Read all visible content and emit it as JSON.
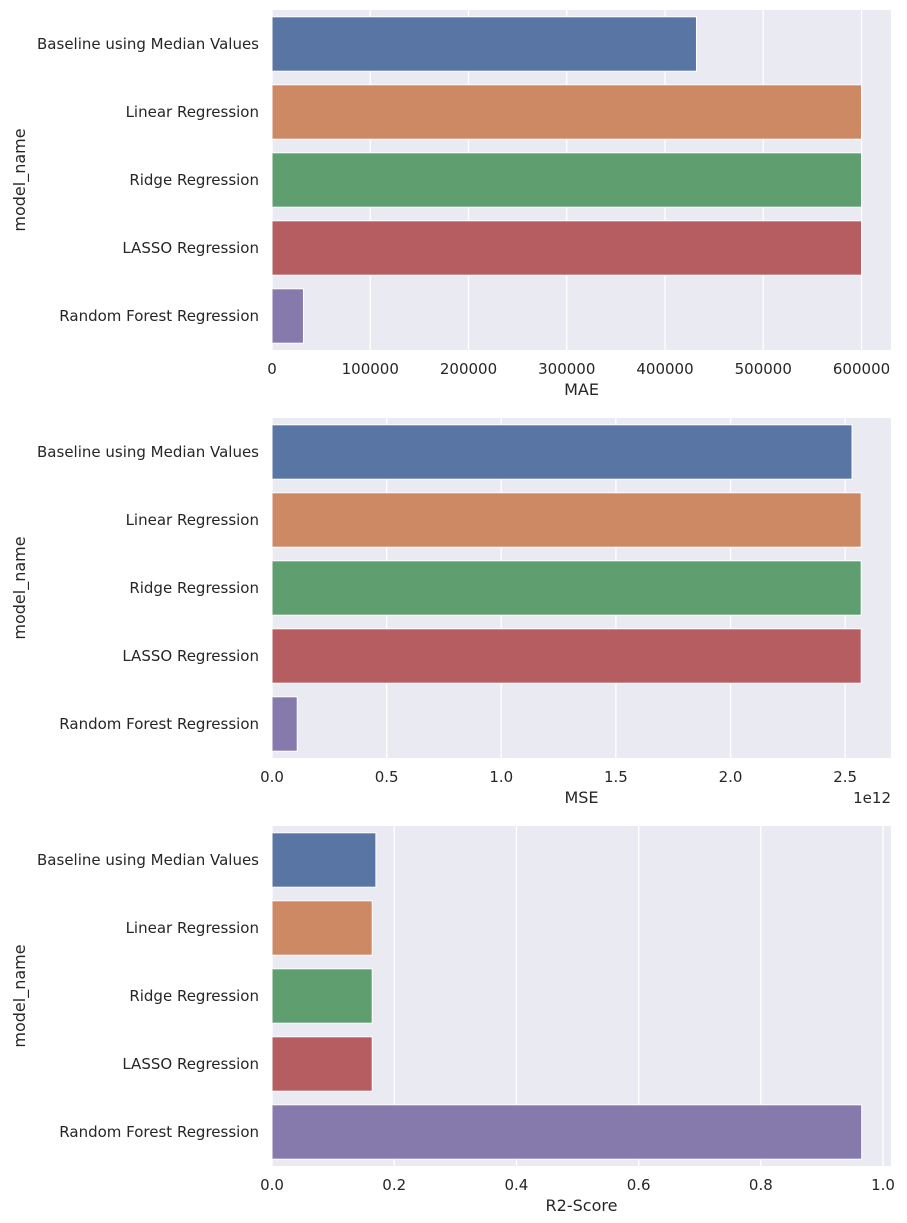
{
  "palette": [
    "#5875a4",
    "#cc8963",
    "#5f9e6e",
    "#b55d60",
    "#857aab"
  ],
  "chart_data": [
    {
      "type": "bar",
      "orientation": "horizontal",
      "categories": [
        "Baseline using Median Values",
        "Linear Regression",
        "Ridge Regression",
        "LASSO Regression",
        "Random Forest Regression"
      ],
      "values": [
        432000,
        600000,
        600000,
        600000,
        32000
      ],
      "xlabel": "MAE",
      "ylabel": "model_name",
      "xlim": [
        0,
        630000
      ],
      "xticks": [
        0,
        100000,
        200000,
        300000,
        400000,
        500000,
        600000
      ],
      "xtick_labels": [
        "0",
        "100000",
        "200000",
        "300000",
        "400000",
        "500000",
        "600000"
      ],
      "offset_text": "",
      "grid": true
    },
    {
      "type": "bar",
      "orientation": "horizontal",
      "categories": [
        "Baseline using Median Values",
        "Linear Regression",
        "Ridge Regression",
        "LASSO Regression",
        "Random Forest Regression"
      ],
      "values": [
        2530000000000.0,
        2570000000000.0,
        2570000000000.0,
        2570000000000.0,
        110000000000.0
      ],
      "xlabel": "MSE",
      "ylabel": "model_name",
      "xlim": [
        0,
        2700000000000.0
      ],
      "xticks": [
        0,
        500000000000.0,
        1000000000000.0,
        1500000000000.0,
        2000000000000.0,
        2500000000000.0
      ],
      "xtick_labels": [
        "0.0",
        "0.5",
        "1.0",
        "1.5",
        "2.0",
        "2.5"
      ],
      "offset_text": "1e12",
      "grid": true
    },
    {
      "type": "bar",
      "orientation": "horizontal",
      "categories": [
        "Baseline using Median Values",
        "Linear Regression",
        "Ridge Regression",
        "LASSO Regression",
        "Random Forest Regression"
      ],
      "values": [
        0.17,
        0.164,
        0.164,
        0.164,
        0.965
      ],
      "xlabel": "R2-Score",
      "ylabel": "model_name",
      "xlim": [
        0,
        1.013
      ],
      "xticks": [
        0,
        0.2,
        0.4,
        0.6,
        0.8,
        1.0
      ],
      "xtick_labels": [
        "0.0",
        "0.2",
        "0.4",
        "0.6",
        "0.8",
        "1.0"
      ],
      "offset_text": "",
      "grid": true
    }
  ]
}
